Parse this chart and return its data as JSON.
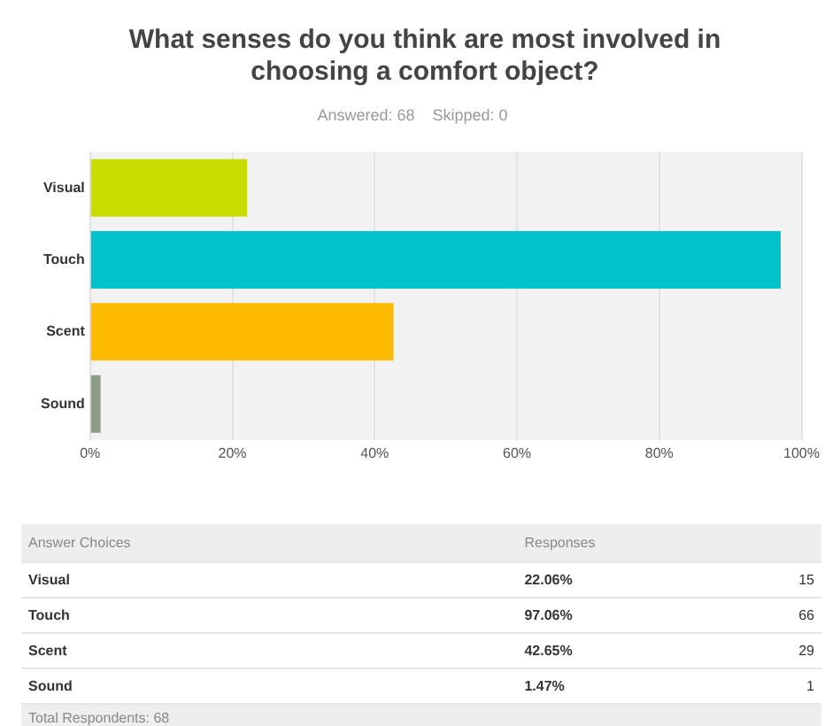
{
  "chart_data": {
    "type": "bar",
    "orientation": "horizontal",
    "title": "What senses do you think are most involved in choosing a comfort object?",
    "subtitle": "Answered: 68    Skipped: 0",
    "categories": [
      "Visual",
      "Touch",
      "Scent",
      "Sound"
    ],
    "values": [
      22.06,
      97.06,
      42.65,
      1.47
    ],
    "colors": [
      "#c8dc00",
      "#00c2c8",
      "#ffbb00",
      "#8c9a88"
    ],
    "xlim": [
      0,
      100
    ],
    "xticks": [
      {
        "value": 0,
        "label": "0%"
      },
      {
        "value": 20,
        "label": "20%"
      },
      {
        "value": 40,
        "label": "40%"
      },
      {
        "value": 60,
        "label": "60%"
      },
      {
        "value": 80,
        "label": "80%"
      },
      {
        "value": 100,
        "label": "100%"
      }
    ],
    "grid": "x",
    "legend": false,
    "annotations": [
      "Answer Choices",
      "Responses",
      "22.06%",
      "15",
      "97.06%",
      "66",
      "42.65%",
      "29",
      "1.47%",
      "1",
      "Total Respondents: 68"
    ]
  }
}
